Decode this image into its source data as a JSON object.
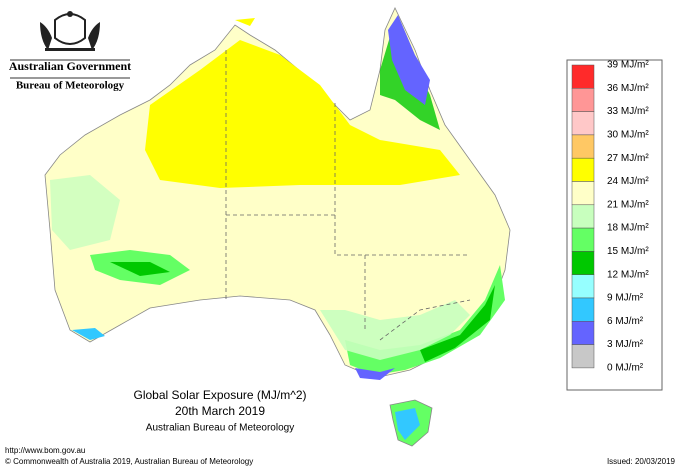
{
  "header": {
    "government": "Australian Government",
    "agency": "Bureau of Meteorology"
  },
  "legend": {
    "items": [
      {
        "label": "39 MJ/m²",
        "color": "#ff2a2a"
      },
      {
        "label": "36 MJ/m²",
        "color": "#ff9696"
      },
      {
        "label": "33 MJ/m²",
        "color": "#ffc8c8"
      },
      {
        "label": "30 MJ/m²",
        "color": "#ffc864"
      },
      {
        "label": "27 MJ/m²",
        "color": "#ffff00"
      },
      {
        "label": "24 MJ/m²",
        "color": "#ffffc8"
      },
      {
        "label": "21 MJ/m²",
        "color": "#c8ffbe"
      },
      {
        "label": "18 MJ/m²",
        "color": "#64ff64"
      },
      {
        "label": "15 MJ/m²",
        "color": "#00c800"
      },
      {
        "label": "12 MJ/m²",
        "color": "#96ffff"
      },
      {
        "label": "9 MJ/m²",
        "color": "#32c8ff"
      },
      {
        "label": "6 MJ/m²",
        "color": "#6464ff"
      },
      {
        "label": "3 MJ/m²",
        "color": "#c8c8c8"
      }
    ],
    "bottom_label": "0 MJ/m²"
  },
  "map": {
    "title": "Global Solar Exposure (MJ/m^2)",
    "date": "20th March 2019",
    "source": "Australian Bureau of Meteorology"
  },
  "footer": {
    "url": "http://www.bom.gov.au",
    "copyright": "© Commonwealth of Australia 2019, Australian Bureau of Meteorology",
    "issued": "Issued: 20/03/2019"
  }
}
